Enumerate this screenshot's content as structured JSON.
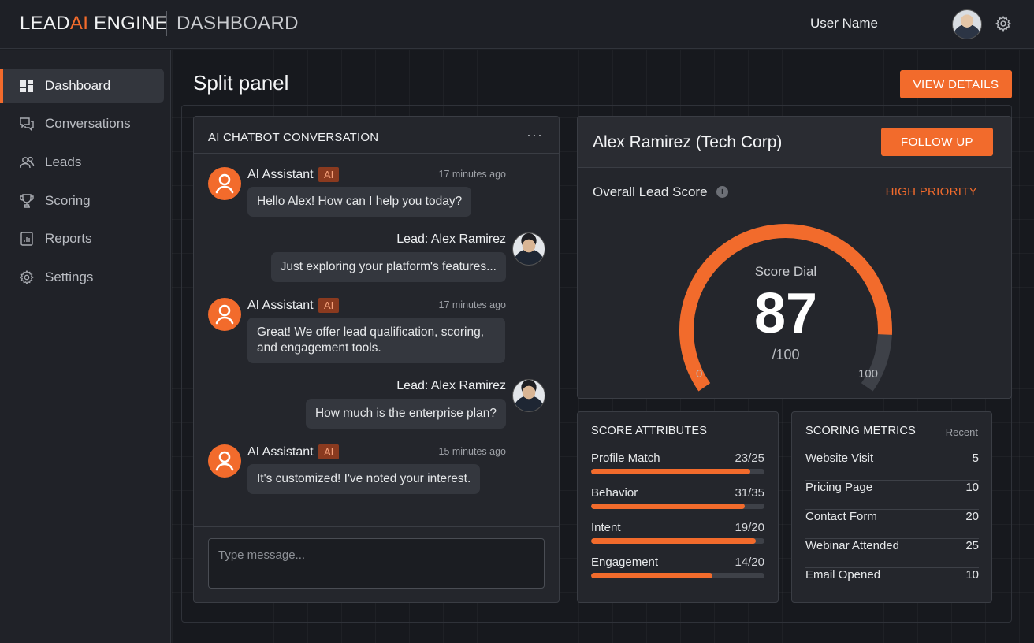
{
  "header": {
    "brand_prefix": "LEAD",
    "brand_accent": "AI",
    "brand_suffix": " ENGINE",
    "section": "DASHBOARD",
    "user_name": "User Name"
  },
  "sidebar": {
    "items": [
      {
        "label": "Dashboard",
        "icon": "dashboard-icon",
        "active": true
      },
      {
        "label": "Conversations",
        "icon": "chat-icon",
        "active": false
      },
      {
        "label": "Leads",
        "icon": "users-icon",
        "active": false
      },
      {
        "label": "Scoring",
        "icon": "trophy-icon",
        "active": false
      },
      {
        "label": "Reports",
        "icon": "report-icon",
        "active": false
      },
      {
        "label": "Settings",
        "icon": "gear-icon",
        "active": false
      }
    ]
  },
  "main": {
    "title": "Split panel",
    "view_details": "VIEW DETAILS"
  },
  "chat": {
    "title": "AI CHATBOT CONVERSATION",
    "menu": "···",
    "messages": [
      {
        "sender": "AI Assistant",
        "tag": "AI",
        "time": "17 minutes ago",
        "text": "Hello Alex! How can I help you today?"
      },
      {
        "sender": "Lead: Alex Ramirez",
        "text": "Just exploring your platform's features..."
      },
      {
        "sender": "AI Assistant",
        "tag": "AI",
        "time": "17 minutes ago",
        "text": "Great! We offer lead qualification, scoring, and engagement tools."
      },
      {
        "sender": "Lead: Alex Ramirez",
        "text": "How much is the enterprise plan?"
      },
      {
        "sender": "AI Assistant",
        "tag": "AI",
        "time": "15 minutes ago",
        "text": "It's customized! I've noted your interest."
      }
    ],
    "input_placeholder": "Type message..."
  },
  "lead": {
    "name": "Alex Ramirez (Tech Corp)",
    "follow_up": "FOLLOW UP",
    "score_label": "Overall Lead Score",
    "info": "i",
    "priority": "HIGH PRIORITY",
    "dial_caption": "Score Dial",
    "score": 87,
    "score_text": "87",
    "score_max_text": "/100",
    "tick_min": "0",
    "tick_max": "100"
  },
  "attributes": {
    "title": "SCORE ATTRIBUTES",
    "items": [
      {
        "name": "Profile Match",
        "value": "23/25",
        "fraction": 0.92
      },
      {
        "name": "Behavior",
        "value": "31/35",
        "fraction": 0.886
      },
      {
        "name": "Intent",
        "value": "19/20",
        "fraction": 0.95
      },
      {
        "name": "Engagement",
        "value": "14/20",
        "fraction": 0.7
      }
    ]
  },
  "metrics": {
    "title": "SCORING METRICS",
    "filter": "Recent",
    "items": [
      {
        "name": "Website Visit",
        "value": "5"
      },
      {
        "name": "Pricing Page",
        "value": "10"
      },
      {
        "name": "Contact Form",
        "value": "20"
      },
      {
        "name": "Webinar Attended",
        "value": "25"
      },
      {
        "name": "Email Opened",
        "value": "10"
      }
    ]
  },
  "colors": {
    "accent": "#f26b2c",
    "background": "#17191e",
    "panel": "#24262c"
  }
}
